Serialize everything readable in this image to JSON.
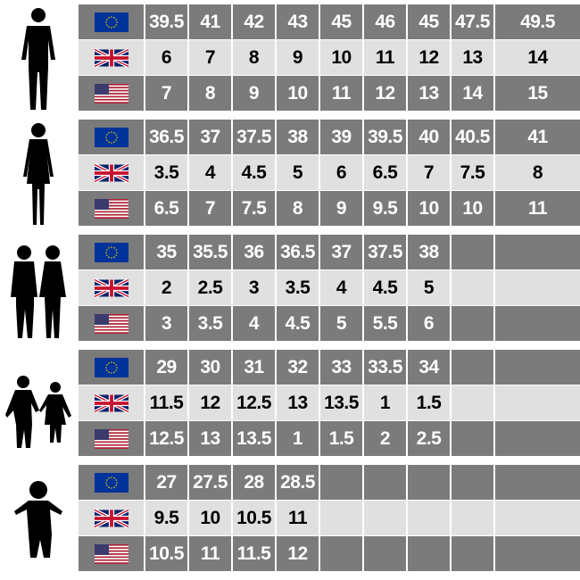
{
  "colors": {
    "dark_row": "#7b7b7b",
    "light_row": "#e0e0e0",
    "eu_blue": "#003399",
    "eu_star": "#ffcc00"
  },
  "row_flags": [
    "eu-flag-icon",
    "uk-flag-icon",
    "us-flag-icon"
  ],
  "groups": [
    {
      "silhouette": "man-silhouette-icon",
      "eu": [
        "39.5",
        "41",
        "42",
        "43",
        "45",
        "46",
        "45",
        "47.5",
        "49.5"
      ],
      "uk": [
        "6",
        "7",
        "8",
        "9",
        "10",
        "11",
        "12",
        "13",
        "14"
      ],
      "us": [
        "7",
        "8",
        "9",
        "10",
        "11",
        "12",
        "13",
        "14",
        "15"
      ]
    },
    {
      "silhouette": "woman-silhouette-icon",
      "eu": [
        "36.5",
        "37",
        "37.5",
        "38",
        "39",
        "39.5",
        "40",
        "40.5",
        "41"
      ],
      "uk": [
        "3.5",
        "4",
        "4.5",
        "5",
        "6",
        "6.5",
        "7",
        "7.5",
        "8"
      ],
      "us": [
        "6.5",
        "7",
        "7.5",
        "8",
        "9",
        "9.5",
        "10",
        "10",
        "11"
      ]
    },
    {
      "silhouette": "teens-silhouette-icon",
      "eu": [
        "35",
        "35.5",
        "36",
        "36.5",
        "37",
        "37.5",
        "38",
        "",
        ""
      ],
      "uk": [
        "2",
        "2.5",
        "3",
        "3.5",
        "4",
        "4.5",
        "5",
        "",
        ""
      ],
      "us": [
        "3",
        "3.5",
        "4",
        "4.5",
        "5",
        "5.5",
        "6",
        "",
        ""
      ]
    },
    {
      "silhouette": "children-silhouette-icon",
      "eu": [
        "29",
        "30",
        "31",
        "32",
        "33",
        "33.5",
        "34",
        "",
        ""
      ],
      "uk": [
        "11.5",
        "12",
        "12.5",
        "13",
        "13.5",
        "1",
        "1.5",
        "",
        ""
      ],
      "us": [
        "12.5",
        "13",
        "13.5",
        "1",
        "1.5",
        "2",
        "2.5",
        "",
        ""
      ]
    },
    {
      "silhouette": "toddler-silhouette-icon",
      "eu": [
        "27",
        "27.5",
        "28",
        "28.5",
        "",
        "",
        "",
        "",
        ""
      ],
      "uk": [
        "9.5",
        "10",
        "10.5",
        "11",
        "",
        "",
        "",
        "",
        ""
      ],
      "us": [
        "10.5",
        "11",
        "11.5",
        "12",
        "",
        "",
        "",
        "",
        ""
      ]
    }
  ]
}
